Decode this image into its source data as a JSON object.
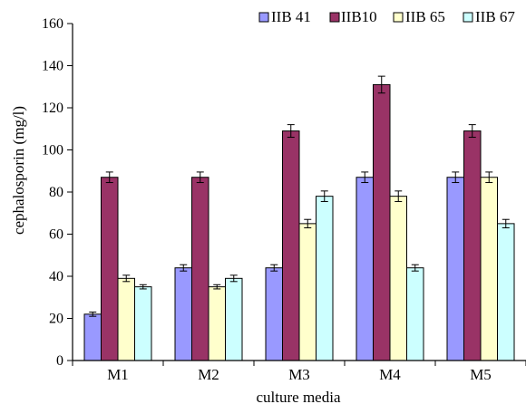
{
  "chart_data": {
    "type": "bar",
    "title": "",
    "xlabel": "culture media",
    "ylabel": "cephalosporin (mg/l)",
    "categories": [
      "M1",
      "M2",
      "M3",
      "M4",
      "M5"
    ],
    "ylim": [
      0,
      160
    ],
    "yticks": [
      "0",
      "20",
      "40",
      "60",
      "80",
      "100",
      "120",
      "140",
      "160"
    ],
    "grid": false,
    "legend_position": "top-right",
    "series": [
      {
        "name": "IIB 41",
        "color": "#9999ff",
        "values": [
          22,
          44,
          44,
          87,
          87
        ],
        "errors": [
          1,
          1.5,
          1.5,
          2.5,
          2.5
        ]
      },
      {
        "name": "IIB10",
        "color": "#993366",
        "values": [
          87,
          87,
          109,
          131,
          109
        ],
        "errors": [
          2.5,
          2.5,
          3,
          4,
          3
        ]
      },
      {
        "name": "IIB 65",
        "color": "#ffffcc",
        "values": [
          39,
          35,
          65,
          78,
          87
        ],
        "errors": [
          1.5,
          1,
          2,
          2.5,
          2.5
        ]
      },
      {
        "name": "IIB 67",
        "color": "#ccffff",
        "values": [
          35,
          39,
          78,
          44,
          65
        ],
        "errors": [
          1,
          1.5,
          2.5,
          1.5,
          2
        ]
      }
    ]
  }
}
